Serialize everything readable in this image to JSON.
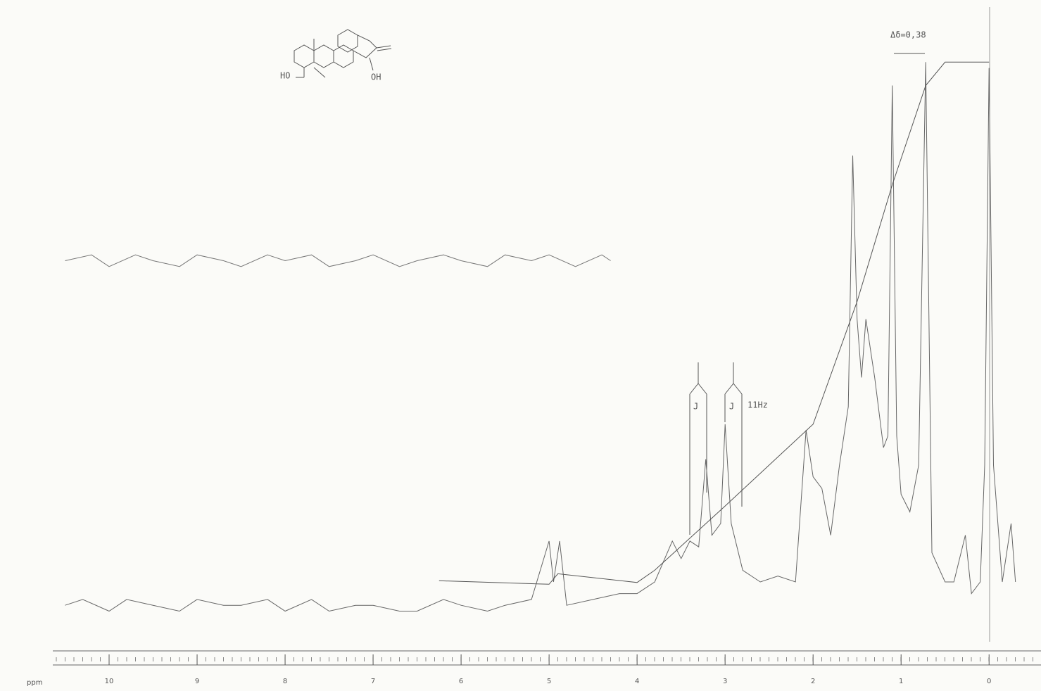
{
  "chart_data": {
    "type": "line",
    "x_label": "ppm",
    "xlim": [
      10.64,
      -0.59
    ],
    "ylim": [
      0,
      100
    ],
    "xticks": [
      10,
      9,
      8,
      7,
      6,
      5,
      4,
      3,
      2,
      1,
      0
    ],
    "series": [
      {
        "color": "#666",
        "x": [
          10.5,
          10.3,
          10.0,
          9.8,
          9.5,
          9.2,
          9.0,
          8.7,
          8.5,
          8.2,
          8.0,
          7.7,
          7.5,
          7.2,
          7.0,
          6.7,
          6.5,
          6.2,
          6.0,
          5.7,
          5.5,
          5.2,
          5.0,
          4.95,
          4.88,
          4.8,
          4.5,
          4.2,
          4.0,
          3.8,
          3.6,
          3.5,
          3.4,
          3.3,
          3.22,
          3.15,
          3.05,
          3.0,
          2.93,
          2.8,
          2.6,
          2.4,
          2.2,
          2.08,
          2.0,
          1.9,
          1.8,
          1.7,
          1.6,
          1.55,
          1.5,
          1.45,
          1.4,
          1.3,
          1.2,
          1.15,
          1.1,
          1.05,
          1.0,
          0.9,
          0.8,
          0.72,
          0.65,
          0.5,
          0.4,
          0.27,
          0.2,
          0.1,
          0.05,
          0.0,
          -0.05,
          -0.15,
          -0.25,
          -0.3
        ],
        "values": [
          6,
          7,
          5,
          7,
          6,
          5,
          7,
          6,
          6,
          7,
          5,
          7,
          5,
          6,
          6,
          5,
          5,
          7,
          6,
          5,
          6,
          7,
          17,
          10,
          17,
          6,
          7,
          8,
          8,
          10,
          17,
          14,
          17,
          16,
          31,
          18,
          20,
          37,
          20,
          12,
          10,
          11,
          10,
          36,
          28,
          26,
          18,
          30,
          40,
          83,
          55,
          45,
          55,
          45,
          33,
          35,
          95,
          35,
          25,
          22,
          30,
          99,
          15,
          10,
          10,
          18,
          8,
          10,
          30,
          98,
          30,
          10,
          20,
          10
        ]
      },
      {
        "color": "#555",
        "x": [
          6.25,
          5.0,
          4.9,
          4.0,
          3.8,
          3.0,
          2.0,
          1.5,
          1.1,
          0.72,
          0.5,
          0.3,
          0.0
        ],
        "values": [
          10.2,
          9.6,
          11.4,
          9.9,
          12,
          23,
          37,
          58,
          78,
          95,
          99,
          99,
          99
        ]
      },
      {
        "color": "#777",
        "x": [
          10.5,
          10.2,
          10.0,
          9.7,
          9.5,
          9.2,
          9.0,
          8.7,
          8.5,
          8.2,
          8.0,
          7.7,
          7.5,
          7.2,
          7.0,
          6.7,
          6.5,
          6.2,
          6.0,
          5.7,
          5.5,
          5.2,
          5.0,
          4.7,
          4.4,
          4.3
        ],
        "values": [
          65,
          66,
          64,
          66,
          65,
          64,
          66,
          65,
          64,
          66,
          65,
          66,
          64,
          65,
          66,
          64,
          65,
          66,
          65,
          64,
          66,
          65,
          66,
          64,
          66,
          65
        ]
      }
    ],
    "annotations": {
      "delta": "Δδ=0,38",
      "j1": "J",
      "j2": "J",
      "hz": "11Hz",
      "ho": "HO",
      "oh": "OH"
    }
  }
}
